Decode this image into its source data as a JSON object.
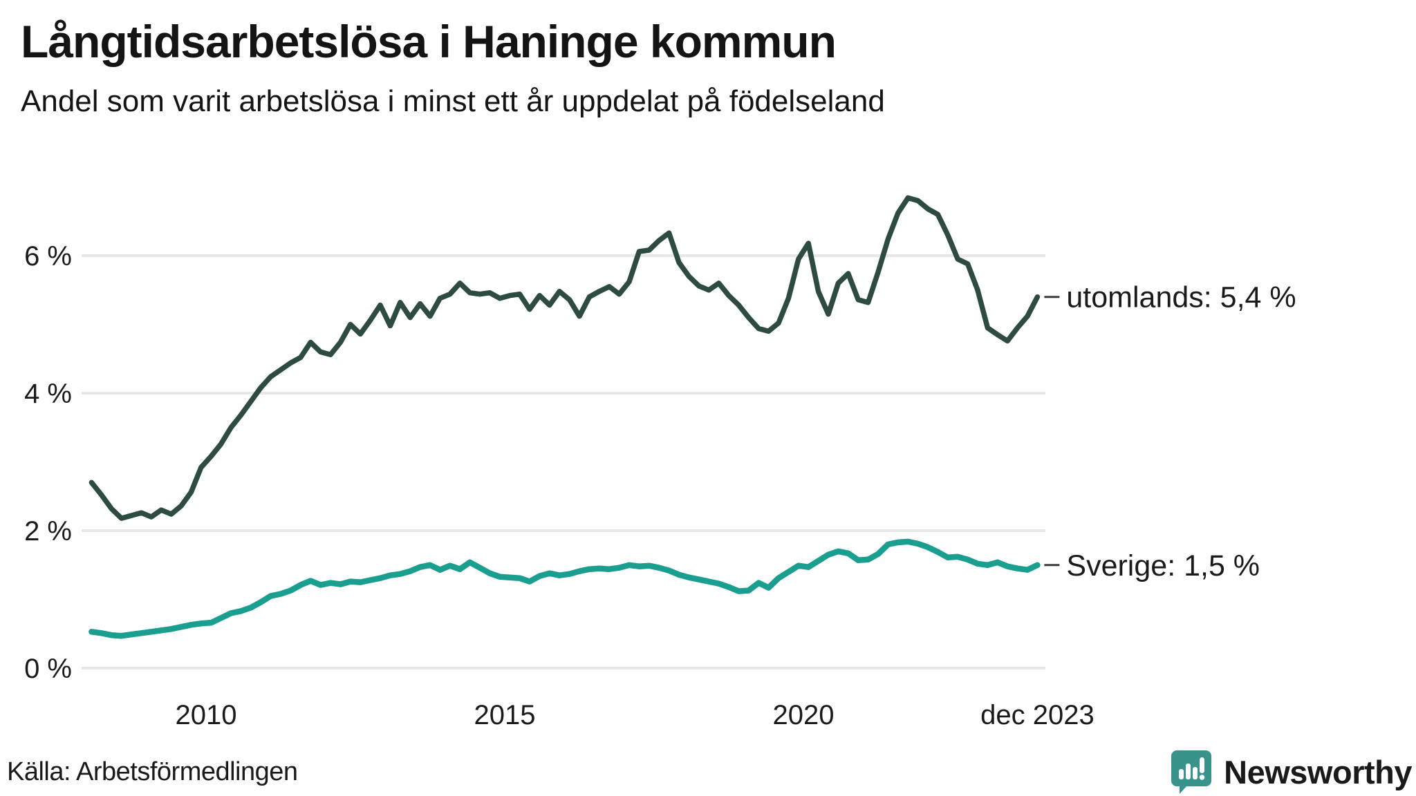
{
  "header": {
    "title": "Långtidsarbetslösa i Haninge kommun",
    "subtitle": "Andel som varit arbetslösa i minst ett år uppdelat på födelseland"
  },
  "footer": {
    "source_label": "Källa: Arbetsförmedlingen",
    "brand_name": "Newsworthy",
    "brand_color": "#3f948b",
    "brand_icon": "speech-bubble-bar-chart-icon",
    "brand_icon_bg": "#38948a"
  },
  "colors": {
    "background": "#ffffff",
    "gridline": "#e7e7ea",
    "text": "#1a1a1a",
    "annotation_tick": "#3a3a3a"
  },
  "chart_data": {
    "type": "line",
    "title": "Långtidsarbetslösa i Haninge kommun",
    "subtitle": "Andel som varit arbetslösa i minst ett år uppdelat på födelseland",
    "source": "Källa: Arbetsförmedlingen",
    "grid": "horizontal-only",
    "legend_position": "right-end-annotations",
    "x_axis": {
      "unit": "year-month",
      "start": 2008.0833,
      "end": 2023.9167,
      "step_years": 0.166667,
      "ticks": [
        {
          "label": "2010",
          "year": 2010
        },
        {
          "label": "2015",
          "year": 2015
        },
        {
          "label": "2020",
          "year": 2020
        },
        {
          "label": "dec 2023",
          "year": 2023.9167
        }
      ]
    },
    "y_axis": {
      "unit": "%",
      "range": [
        0,
        7
      ],
      "ticks": [
        {
          "label": "0 %",
          "value": 0
        },
        {
          "label": "2 %",
          "value": 2
        },
        {
          "label": "4 %",
          "value": 4
        },
        {
          "label": "6 %",
          "value": 6
        }
      ]
    },
    "series": [
      {
        "name": "utomlands",
        "label": "utomlands: 5,4 %",
        "end_value": 5.4,
        "color": "#2d4b43",
        "stroke_width": 7.5,
        "values": [
          2.7,
          2.52,
          2.32,
          2.18,
          2.22,
          2.26,
          2.2,
          2.3,
          2.24,
          2.36,
          2.56,
          2.92,
          3.08,
          3.26,
          3.5,
          3.68,
          3.88,
          4.08,
          4.24,
          4.34,
          4.44,
          4.52,
          4.74,
          4.6,
          4.56,
          4.74,
          5.0,
          4.86,
          5.06,
          5.28,
          4.98,
          5.32,
          5.1,
          5.3,
          5.12,
          5.38,
          5.44,
          5.6,
          5.46,
          5.44,
          5.46,
          5.38,
          5.42,
          5.44,
          5.22,
          5.42,
          5.28,
          5.48,
          5.36,
          5.12,
          5.4,
          5.48,
          5.55,
          5.44,
          5.62,
          6.06,
          6.08,
          6.22,
          6.33,
          5.9,
          5.7,
          5.56,
          5.5,
          5.6,
          5.42,
          5.28,
          5.1,
          4.94,
          4.9,
          5.02,
          5.38,
          5.95,
          6.18,
          5.48,
          5.15,
          5.6,
          5.74,
          5.36,
          5.32,
          5.76,
          6.24,
          6.62,
          6.84,
          6.8,
          6.68,
          6.6,
          6.3,
          5.95,
          5.88,
          5.5,
          4.95,
          4.85,
          4.76,
          4.95,
          5.12,
          5.4
        ]
      },
      {
        "name": "Sverige",
        "label": "Sverige: 1,5 %",
        "end_value": 1.5,
        "color": "#1a9e8f",
        "stroke_width": 8.5,
        "values": [
          0.53,
          0.51,
          0.48,
          0.47,
          0.49,
          0.51,
          0.53,
          0.55,
          0.57,
          0.6,
          0.63,
          0.65,
          0.66,
          0.73,
          0.8,
          0.83,
          0.88,
          0.96,
          1.05,
          1.08,
          1.13,
          1.21,
          1.27,
          1.21,
          1.24,
          1.22,
          1.26,
          1.25,
          1.28,
          1.31,
          1.35,
          1.37,
          1.41,
          1.47,
          1.5,
          1.43,
          1.49,
          1.44,
          1.54,
          1.46,
          1.38,
          1.33,
          1.32,
          1.31,
          1.26,
          1.34,
          1.38,
          1.35,
          1.37,
          1.41,
          1.44,
          1.45,
          1.44,
          1.46,
          1.5,
          1.48,
          1.49,
          1.46,
          1.42,
          1.36,
          1.32,
          1.29,
          1.26,
          1.23,
          1.18,
          1.12,
          1.13,
          1.24,
          1.17,
          1.31,
          1.4,
          1.49,
          1.47,
          1.56,
          1.65,
          1.7,
          1.67,
          1.57,
          1.58,
          1.66,
          1.8,
          1.83,
          1.84,
          1.81,
          1.76,
          1.69,
          1.61,
          1.62,
          1.58,
          1.52,
          1.5,
          1.54,
          1.48,
          1.45,
          1.43,
          1.5
        ]
      }
    ]
  }
}
